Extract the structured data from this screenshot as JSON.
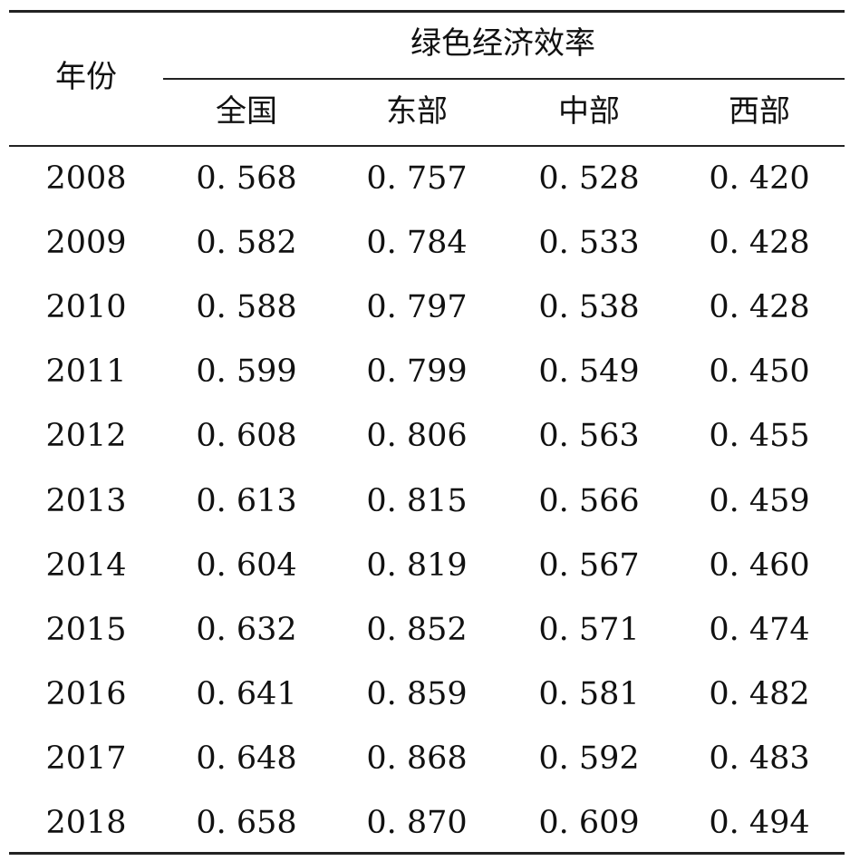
{
  "table": {
    "row_header": "年份",
    "group_header": "绿色经济效率",
    "columns": [
      "全国",
      "东部",
      "中部",
      "西部"
    ],
    "rows": [
      {
        "year": "2008",
        "values": [
          "0. 568",
          "0. 757",
          "0. 528",
          "0. 420"
        ]
      },
      {
        "year": "2009",
        "values": [
          "0. 582",
          "0. 784",
          "0. 533",
          "0. 428"
        ]
      },
      {
        "year": "2010",
        "values": [
          "0. 588",
          "0. 797",
          "0. 538",
          "0. 428"
        ]
      },
      {
        "year": "2011",
        "values": [
          "0. 599",
          "0. 799",
          "0. 549",
          "0. 450"
        ]
      },
      {
        "year": "2012",
        "values": [
          "0. 608",
          "0. 806",
          "0. 563",
          "0. 455"
        ]
      },
      {
        "year": "2013",
        "values": [
          "0. 613",
          "0. 815",
          "0. 566",
          "0. 459"
        ]
      },
      {
        "year": "2014",
        "values": [
          "0. 604",
          "0. 819",
          "0. 567",
          "0. 460"
        ]
      },
      {
        "year": "2015",
        "values": [
          "0. 632",
          "0. 852",
          "0. 571",
          "0. 474"
        ]
      },
      {
        "year": "2016",
        "values": [
          "0. 641",
          "0. 859",
          "0. 581",
          "0. 482"
        ]
      },
      {
        "year": "2017",
        "values": [
          "0. 648",
          "0. 868",
          "0. 592",
          "0. 483"
        ]
      },
      {
        "year": "2018",
        "values": [
          "0. 658",
          "0. 870",
          "0. 609",
          "0. 494"
        ]
      }
    ]
  }
}
